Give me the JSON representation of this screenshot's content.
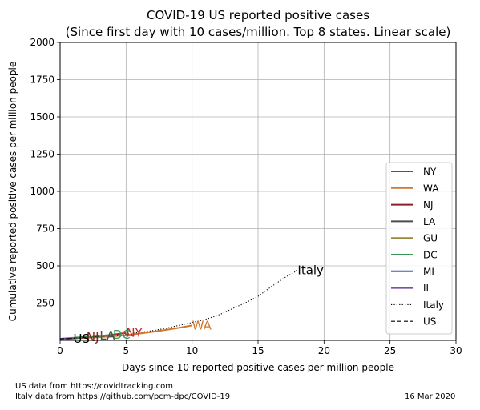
{
  "chart_data": {
    "type": "line",
    "title": "COVID-19 US reported positive cases",
    "subtitle": "(Since first day with 10 cases/million. Top 8 states. Linear scale)",
    "xlabel": "Days since 10 reported positive cases per million people",
    "ylabel": "Cumulative reported positive cases per million people",
    "xlim": [
      0,
      30
    ],
    "ylim": [
      0,
      2000
    ],
    "scale": "linear",
    "grid": true,
    "legend_position": "lower right",
    "x_ticks": [
      0,
      5,
      10,
      15,
      20,
      25,
      30
    ],
    "y_ticks": [
      250,
      500,
      750,
      1000,
      1250,
      1500,
      1750,
      2000
    ],
    "series": [
      {
        "name": "NY",
        "color": "#c0282d",
        "style": "solid",
        "label": "NY",
        "x": [
          0,
          1,
          2,
          3,
          4,
          5
        ],
        "y": [
          10,
          15,
          21,
          29,
          38,
          50
        ]
      },
      {
        "name": "WA",
        "color": "#d2772e",
        "style": "solid",
        "label": "WA",
        "x": [
          0,
          1,
          2,
          3,
          4,
          5,
          6,
          7,
          8,
          9,
          10
        ],
        "y": [
          10,
          13,
          17,
          21,
          27,
          35,
          45,
          57,
          70,
          84,
          100
        ]
      },
      {
        "name": "NJ",
        "color": "#8b2122",
        "style": "solid",
        "label": "NJ",
        "x": [
          0,
          1,
          2
        ],
        "y": [
          10,
          15,
          22
        ]
      },
      {
        "name": "LA",
        "color": "#4d4d4d",
        "style": "solid",
        "label": "LA",
        "x": [
          0,
          1,
          2,
          3
        ],
        "y": [
          10,
          16,
          24,
          33
        ]
      },
      {
        "name": "GU",
        "color": "#9c8a3a",
        "style": "solid",
        "label": "",
        "x": [
          0,
          1
        ],
        "y": [
          10,
          18
        ]
      },
      {
        "name": "DC",
        "color": "#3a9654",
        "style": "solid",
        "label": "DC",
        "x": [
          0,
          1,
          2,
          3,
          4
        ],
        "y": [
          10,
          14,
          20,
          28,
          38
        ]
      },
      {
        "name": "MI",
        "color": "#3a5fb0",
        "style": "solid",
        "label": "",
        "x": [
          0,
          1
        ],
        "y": [
          10,
          13
        ]
      },
      {
        "name": "IL",
        "color": "#7a4fa8",
        "style": "solid",
        "label": "",
        "x": [
          0,
          1
        ],
        "y": [
          10,
          12
        ]
      },
      {
        "name": "Italy",
        "color": "#000000",
        "style": "dotted",
        "label": "Italy",
        "x": [
          0,
          1,
          2,
          3,
          4,
          5,
          6,
          7,
          8,
          9,
          10,
          11,
          12,
          13,
          14,
          15,
          16,
          17,
          18
        ],
        "y": [
          10,
          14,
          19,
          25,
          33,
          42,
          53,
          65,
          80,
          100,
          120,
          140,
          170,
          210,
          250,
          295,
          360,
          420,
          470
        ]
      },
      {
        "name": "US",
        "color": "#000000",
        "style": "dashed",
        "label": "US",
        "x": [
          0,
          1
        ],
        "y": [
          10,
          12
        ]
      }
    ]
  },
  "footer": {
    "source_us": "US data from https://covidtracking.com",
    "source_italy": "Italy data from https://github.com/pcm-dpc/COVID-19",
    "date": "16 Mar 2020"
  }
}
